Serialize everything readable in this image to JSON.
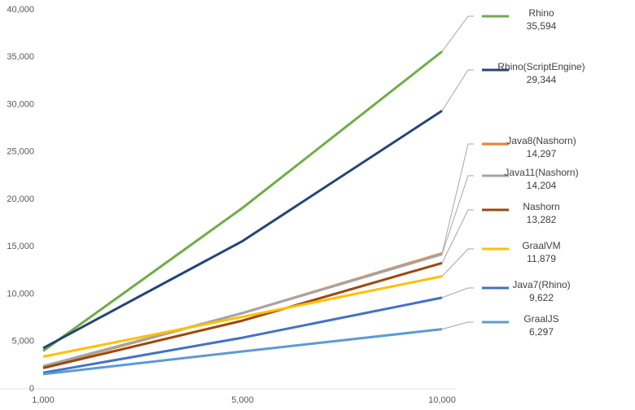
{
  "chart_data": {
    "type": "line",
    "categories": [
      "1,000",
      "5,000",
      "10,000"
    ],
    "ylim": [
      0,
      40000
    ],
    "yticks": [
      {
        "value": 0,
        "label": "0"
      },
      {
        "value": 5000,
        "label": "5,000"
      },
      {
        "value": 10000,
        "label": "10,000"
      },
      {
        "value": 15000,
        "label": "15,000"
      },
      {
        "value": 20000,
        "label": "20,000"
      },
      {
        "value": 25000,
        "label": "25,000"
      },
      {
        "value": 30000,
        "label": "30,000"
      },
      {
        "value": 35000,
        "label": "35,000"
      },
      {
        "value": 40000,
        "label": "40,000"
      }
    ],
    "series": [
      {
        "name": "Rhino",
        "color": "#70ad47",
        "values": [
          4000,
          19100,
          35594
        ],
        "value_labels": [
          null,
          null,
          "35,594"
        ]
      },
      {
        "name": "Rhino(ScriptEngine)",
        "color": "#264478",
        "values": [
          4300,
          15600,
          29344
        ],
        "value_labels": [
          null,
          null,
          "29,344"
        ]
      },
      {
        "name": "Java8(Nashorn)",
        "color": "#ed7d31",
        "values": [
          2300,
          8000,
          14297
        ],
        "value_labels": [
          null,
          null,
          "14,297"
        ]
      },
      {
        "name": "Java11(Nashorn)",
        "color": "#a5a5a5",
        "values": [
          2400,
          8000,
          14204
        ],
        "value_labels": [
          null,
          null,
          "14,204"
        ]
      },
      {
        "name": "Nashorn",
        "color": "#9e480e",
        "values": [
          2200,
          7200,
          13282
        ],
        "value_labels": [
          null,
          null,
          "13,282"
        ]
      },
      {
        "name": "GraalVM",
        "color": "#ffc000",
        "values": [
          3400,
          7600,
          11879
        ],
        "value_labels": [
          null,
          null,
          "11,879"
        ]
      },
      {
        "name": "Java7(Rhino)",
        "color": "#4472c4",
        "values": [
          1700,
          5400,
          9622
        ],
        "value_labels": [
          null,
          null,
          "9,622"
        ]
      },
      {
        "name": "GraalJS",
        "color": "#5b9bd5",
        "values": [
          1550,
          3950,
          6297
        ],
        "value_labels": [
          null,
          null,
          "6,297"
        ]
      }
    ]
  }
}
